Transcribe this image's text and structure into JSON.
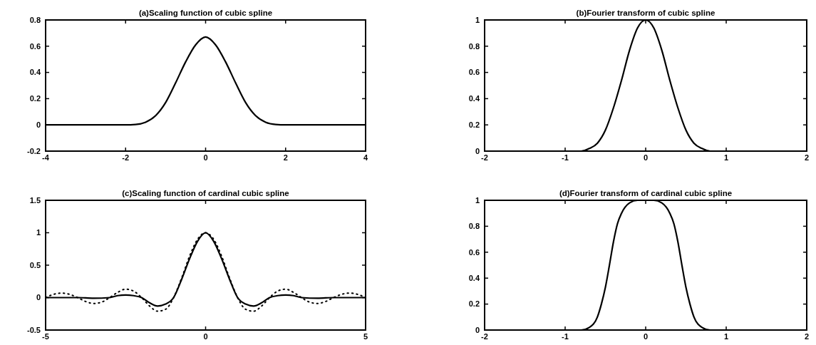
{
  "chart_data": [
    {
      "type": "line",
      "title": "(a)Scaling function of cubic spline",
      "xlim": [
        -4,
        4
      ],
      "ylim": [
        -0.2,
        0.8
      ],
      "xticks": [
        -4,
        -2,
        0,
        2,
        4
      ],
      "yticks": [
        -0.2,
        0,
        0.2,
        0.4,
        0.6,
        0.8
      ],
      "series": [
        {
          "color": "#000000",
          "line_style": "solid",
          "x": [
            -4,
            -2,
            -1.75,
            -1.5,
            -1.25,
            -1,
            -0.75,
            -0.5,
            -0.25,
            0,
            0.25,
            0.5,
            0.75,
            1,
            1.25,
            1.5,
            1.75,
            2,
            4
          ],
          "values": [
            0,
            0,
            0.003,
            0.02,
            0.07,
            0.17,
            0.32,
            0.48,
            0.61,
            0.67,
            0.61,
            0.48,
            0.32,
            0.17,
            0.07,
            0.02,
            0.003,
            0,
            0
          ]
        }
      ]
    },
    {
      "type": "line",
      "title": "(b)Fourier transform of cubic spline",
      "xlim": [
        -2,
        2
      ],
      "ylim": [
        0,
        1
      ],
      "xticks": [
        -2,
        -1,
        0,
        1,
        2
      ],
      "yticks": [
        0,
        0.2,
        0.4,
        0.6,
        0.8,
        1
      ],
      "series": [
        {
          "color": "#000000",
          "line_style": "solid",
          "x": [
            -2,
            -1,
            -0.8,
            -0.7,
            -0.6,
            -0.5,
            -0.4,
            -0.3,
            -0.2,
            -0.1,
            0,
            0.1,
            0.2,
            0.3,
            0.4,
            0.5,
            0.6,
            0.7,
            0.8,
            1,
            2
          ],
          "values": [
            0,
            0,
            0,
            0.02,
            0.06,
            0.16,
            0.33,
            0.54,
            0.77,
            0.94,
            1,
            0.94,
            0.77,
            0.54,
            0.33,
            0.16,
            0.06,
            0.02,
            0,
            0,
            0
          ]
        }
      ]
    },
    {
      "type": "line",
      "title": "(c)Scaling function of cardinal cubic spline",
      "xlim": [
        -5,
        5
      ],
      "ylim": [
        -0.5,
        1.5
      ],
      "xticks": [
        -5,
        0,
        5
      ],
      "yticks": [
        -0.5,
        0,
        0.5,
        1,
        1.5
      ],
      "series": [
        {
          "color": "#000000",
          "line_style": "solid",
          "x": [
            -5,
            -4,
            -3.5,
            -3,
            -2.75,
            -2.5,
            -2.25,
            -2,
            -1.75,
            -1.5,
            -1.25,
            -1,
            -0.75,
            -0.5,
            -0.25,
            0,
            0.25,
            0.5,
            0.75,
            1,
            1.25,
            1.5,
            1.75,
            2,
            2.25,
            2.5,
            2.75,
            3,
            3.5,
            4,
            5
          ],
          "values": [
            0,
            0,
            -0.01,
            0,
            0.03,
            0.04,
            0.03,
            0,
            -0.08,
            -0.13,
            -0.1,
            0,
            0.28,
            0.6,
            0.87,
            1,
            0.87,
            0.6,
            0.28,
            0,
            -0.1,
            -0.13,
            -0.08,
            0,
            0.03,
            0.04,
            0.03,
            0,
            -0.01,
            0,
            0
          ]
        },
        {
          "color": "#000000",
          "line_style": "dotted",
          "x": [
            -5,
            -4.75,
            -4.5,
            -4.25,
            -4,
            -3.75,
            -3.5,
            -3.25,
            -3,
            -2.75,
            -2.5,
            -2.25,
            -2,
            -1.75,
            -1.5,
            -1.25,
            -1,
            -0.75,
            -0.5,
            -0.25,
            0,
            0.25,
            0.5,
            0.75,
            1,
            1.25,
            1.5,
            1.75,
            2,
            2.25,
            2.5,
            2.75,
            3,
            3.25,
            3.5,
            3.75,
            4,
            4.25,
            4.5,
            4.75,
            5
          ],
          "values": [
            0,
            0.05,
            0.07,
            0.05,
            0,
            -0.06,
            -0.09,
            -0.07,
            0,
            0.08,
            0.13,
            0.1,
            0,
            -0.13,
            -0.21,
            -0.18,
            0,
            0.3,
            0.64,
            0.9,
            1,
            0.9,
            0.64,
            0.3,
            0,
            -0.18,
            -0.21,
            -0.13,
            0,
            0.1,
            0.13,
            0.08,
            0,
            -0.07,
            -0.09,
            -0.06,
            0,
            0.05,
            0.07,
            0.05,
            0
          ]
        }
      ]
    },
    {
      "type": "line",
      "title": "(d)Fourier transform of cardinal cubic spline",
      "xlim": [
        -2,
        2
      ],
      "ylim": [
        0,
        1
      ],
      "xticks": [
        -2,
        -1,
        0,
        1,
        2
      ],
      "yticks": [
        0,
        0.2,
        0.4,
        0.6,
        0.8,
        1
      ],
      "series": [
        {
          "color": "#000000",
          "line_style": "solid",
          "x": [
            -2,
            -1,
            -0.8,
            -0.7,
            -0.6,
            -0.55,
            -0.5,
            -0.45,
            -0.4,
            -0.35,
            -0.3,
            -0.2,
            -0.1,
            0,
            0.1,
            0.2,
            0.3,
            0.35,
            0.4,
            0.45,
            0.5,
            0.55,
            0.6,
            0.7,
            0.8,
            1,
            2
          ],
          "values": [
            0,
            0,
            0,
            0.02,
            0.1,
            0.2,
            0.33,
            0.5,
            0.68,
            0.82,
            0.9,
            0.98,
            1,
            1,
            1,
            0.98,
            0.9,
            0.82,
            0.68,
            0.5,
            0.33,
            0.2,
            0.1,
            0.02,
            0,
            0,
            0
          ]
        }
      ]
    }
  ]
}
